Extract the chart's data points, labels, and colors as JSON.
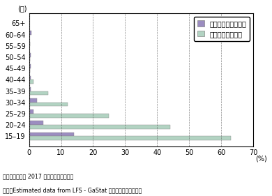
{
  "age_groups": [
    "15–19",
    "20–24",
    "25–29",
    "30–34",
    "35–39",
    "40–44",
    "45–49",
    "50–54",
    "55–59",
    "60–64",
    "65+"
  ],
  "non_saudi": [
    14.0,
    4.5,
    1.5,
    2.5,
    0.5,
    0.5,
    0.5,
    0.5,
    0.3,
    0.8,
    0.0
  ],
  "saudi": [
    63.0,
    44.0,
    25.0,
    12.0,
    6.0,
    1.5,
    0.4,
    0.3,
    0.2,
    0.2,
    0.0
  ],
  "non_saudi_color": "#9b8dc0",
  "saudi_color": "#b2d3c2",
  "xlim": [
    0,
    70
  ],
  "xticks": [
    0,
    10,
    20,
    30,
    40,
    50,
    60,
    70
  ],
  "xlabel": "(%)",
  "ylabel": "(歳)",
  "legend_non_saudi": "非サウジアラビア人",
  "legend_saudi": "サウジアラビア人",
  "note1": "備考：データは 2017 年第３四半期の値。",
  "note2": "資料：Estimated data from LFS - GaStat から経済産業省作成。"
}
